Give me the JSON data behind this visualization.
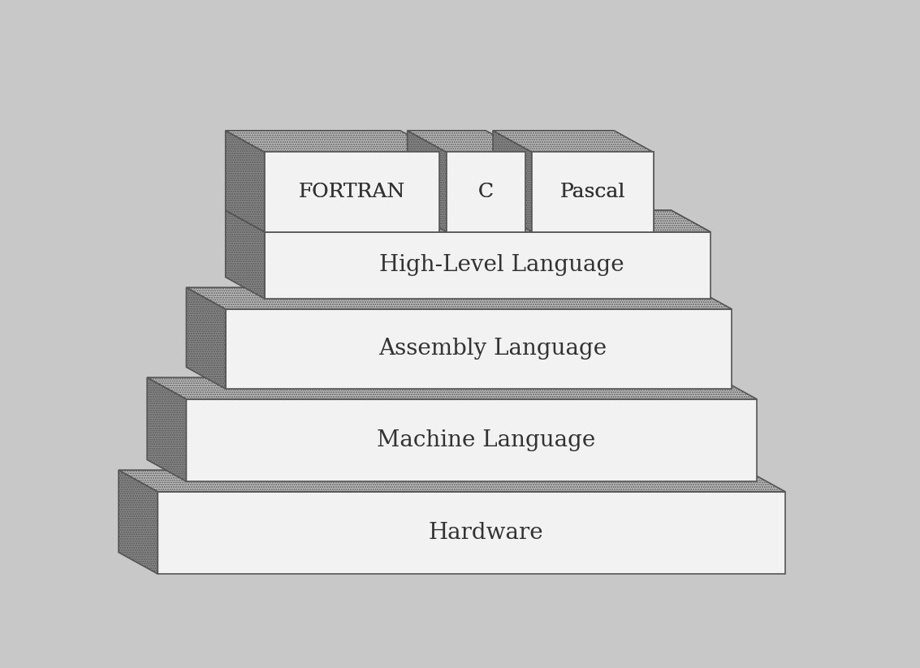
{
  "background_color": "#c8c8c8",
  "face_front": "#f2f2f2",
  "face_side_dark": "#888888",
  "face_top_dot": "#c0c0c0",
  "edge_color": "#555555",
  "text_color": "#333333",
  "layers": [
    {
      "label": "Hardware"
    },
    {
      "label": "Machine Language"
    },
    {
      "label": "Assembly Language"
    },
    {
      "label": "High-Level Language"
    }
  ],
  "sublayers": [
    {
      "label": "FORTRAN",
      "xl": 0.28,
      "xr": 0.56
    },
    {
      "label": "C",
      "xl": 0.575,
      "xr": 0.695
    },
    {
      "label": "Pascal",
      "xl": 0.71,
      "xr": 0.88
    }
  ],
  "label_fontsize": 20,
  "sub_fontsize": 18,
  "lw": 1.2
}
